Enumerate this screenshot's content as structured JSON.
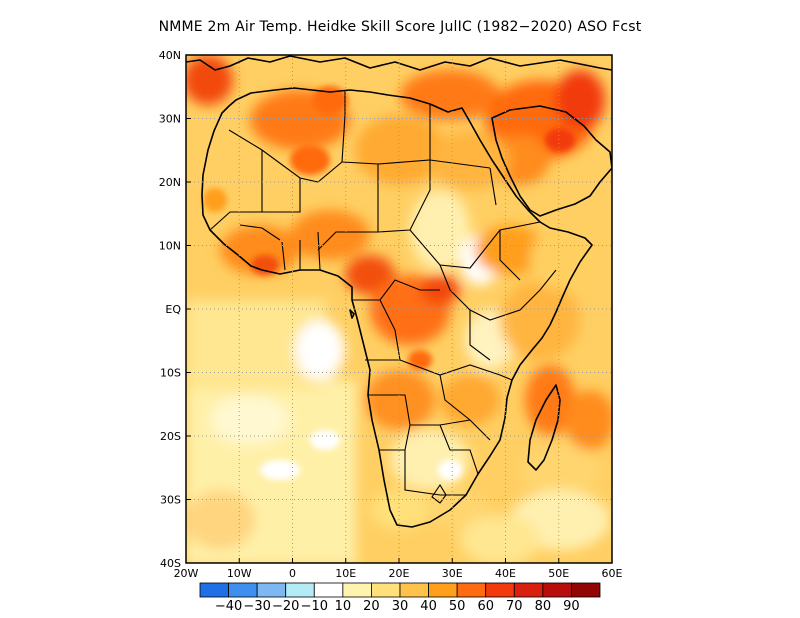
{
  "title": "NMME  2m Air Temp. Heidke Skill Score JulIC (1982−2020) ASO Fcst",
  "map": {
    "lon_range": [
      -20,
      60
    ],
    "lat_range": [
      -40,
      40
    ],
    "x_ticks": [
      {
        "value": -20,
        "label": "20W"
      },
      {
        "value": -10,
        "label": "10W"
      },
      {
        "value": 0,
        "label": "0"
      },
      {
        "value": 10,
        "label": "10E"
      },
      {
        "value": 20,
        "label": "20E"
      },
      {
        "value": 30,
        "label": "30E"
      },
      {
        "value": 40,
        "label": "40E"
      },
      {
        "value": 50,
        "label": "50E"
      },
      {
        "value": 60,
        "label": "60E"
      }
    ],
    "y_ticks": [
      {
        "value": 40,
        "label": "40N"
      },
      {
        "value": 30,
        "label": "30N"
      },
      {
        "value": 20,
        "label": "20N"
      },
      {
        "value": 10,
        "label": "10N"
      },
      {
        "value": 0,
        "label": "EQ"
      },
      {
        "value": -10,
        "label": "10S"
      },
      {
        "value": -20,
        "label": "20S"
      },
      {
        "value": -30,
        "label": "30S"
      },
      {
        "value": -40,
        "label": "40S"
      }
    ],
    "grid": "dotted"
  },
  "colorbar": {
    "colors": [
      "#1f6fe6",
      "#3f90ee",
      "#7eb8f2",
      "#b3ecf4",
      "#ffffff",
      "#fff3b0",
      "#ffe07a",
      "#ffc24a",
      "#ff9f1c",
      "#ff6b10",
      "#f23a0c",
      "#d91f0e",
      "#b80d0d",
      "#920505"
    ],
    "labels": [
      "−40",
      "−30",
      "−20",
      "−10",
      "10",
      "20",
      "30",
      "40",
      "50",
      "60",
      "70",
      "80",
      "90"
    ]
  }
}
